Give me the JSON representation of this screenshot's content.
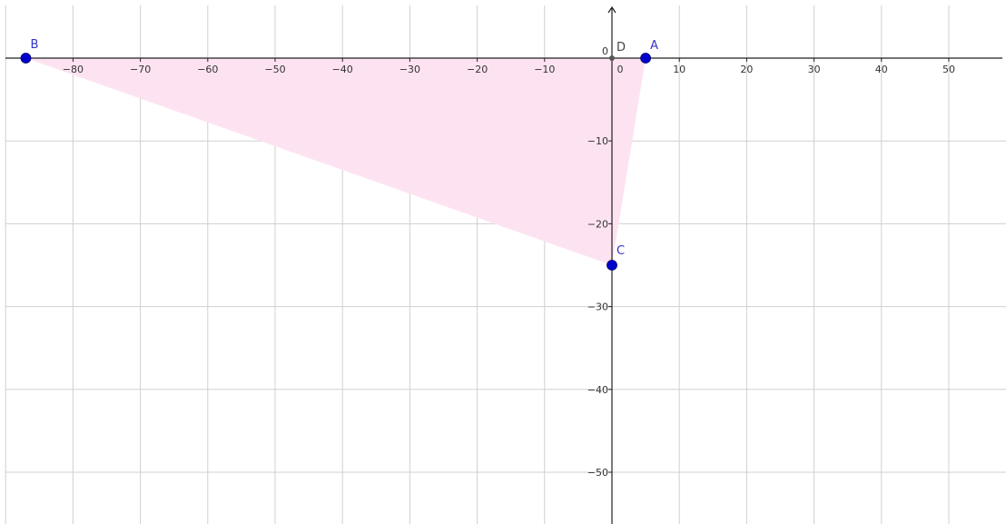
{
  "plane": {
    "x_range": [
      -90,
      58
    ],
    "y_range": [
      -56,
      6
    ],
    "grid": true,
    "grid_step": 10,
    "x_ticks": [
      -80,
      -70,
      -60,
      -50,
      -40,
      -30,
      -20,
      -10,
      0,
      10,
      20,
      30,
      40,
      50
    ],
    "y_ticks": [
      0,
      -10,
      -20,
      -30,
      -40,
      -50
    ],
    "x_tick_labels": [
      "−80",
      "−70",
      "−60",
      "−50",
      "−40",
      "−30",
      "−20",
      "−10",
      "0",
      "10",
      "20",
      "30",
      "40",
      "50"
    ],
    "y_tick_labels": [
      "0",
      "−10",
      "−20",
      "−30",
      "−40",
      "−50"
    ]
  },
  "points": [
    {
      "label": "A",
      "x": 5,
      "y": 0,
      "color": "#0000cc",
      "label_color": "#3333cc",
      "filled": true
    },
    {
      "label": "B",
      "x": -87,
      "y": 0,
      "color": "#0000cc",
      "label_color": "#3333cc",
      "filled": true
    },
    {
      "label": "C",
      "x": 0,
      "y": -25,
      "color": "#0000cc",
      "label_color": "#3333cc",
      "filled": true
    },
    {
      "label": "D",
      "x": 0,
      "y": 0,
      "color": "#555555",
      "label_color": "#444444",
      "filled": true
    }
  ],
  "polygon": {
    "vertices": [
      "A",
      "B",
      "C"
    ],
    "fill": "#fde3f1"
  },
  "colors": {
    "axis": "#222222",
    "grid": "#d0d0d0"
  }
}
